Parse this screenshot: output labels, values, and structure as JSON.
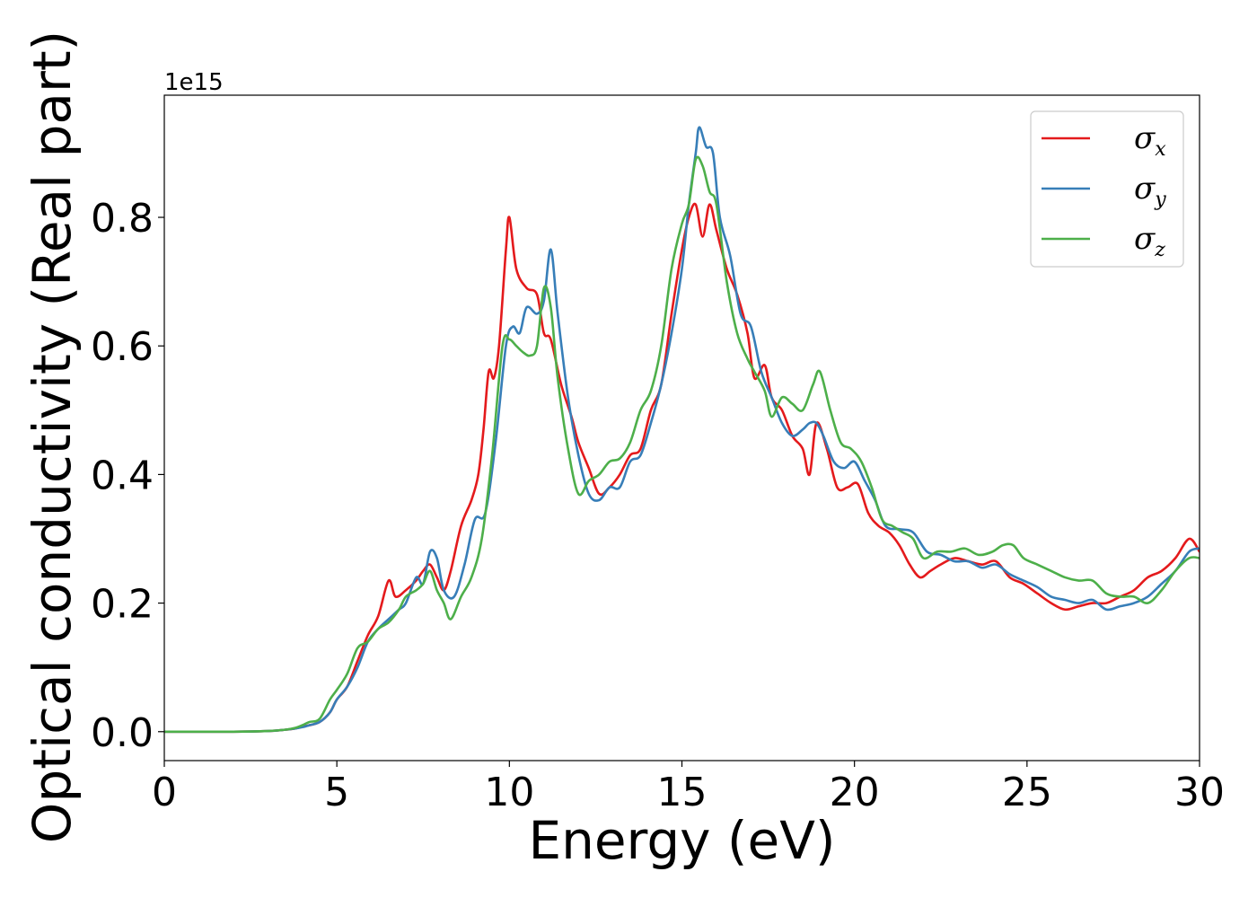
{
  "chart_data": {
    "type": "line",
    "xlabel": "Energy (eV)",
    "ylabel": "Optical conductivity (Real part)",
    "y_offset_label": "1e15",
    "xlim": [
      0,
      30
    ],
    "ylim": [
      -0.045,
      0.99
    ],
    "x_ticks": [
      0,
      5,
      10,
      15,
      20,
      25,
      30
    ],
    "x_tick_labels": [
      "0",
      "5",
      "10",
      "15",
      "20",
      "25",
      "30"
    ],
    "y_ticks": [
      0.0,
      0.2,
      0.4,
      0.6,
      0.8
    ],
    "y_tick_labels": [
      "0.0",
      "0.2",
      "0.4",
      "0.6",
      "0.8"
    ],
    "grid": false,
    "legend_position": "top-right",
    "series": [
      {
        "name": "σx",
        "legend_symbol": "σ",
        "legend_subscript": "x",
        "color": "#e41a1c",
        "x": [
          0,
          2,
          3,
          3.5,
          3.8,
          4.0,
          4.2,
          4.5,
          4.8,
          5.0,
          5.3,
          5.6,
          5.9,
          6.2,
          6.5,
          6.7,
          7.0,
          7.3,
          7.5,
          7.7,
          7.9,
          8.1,
          8.3,
          8.6,
          8.9,
          9.1,
          9.25,
          9.4,
          9.55,
          9.7,
          9.9,
          10.0,
          10.2,
          10.5,
          10.8,
          11.0,
          11.2,
          11.5,
          11.8,
          12.0,
          12.3,
          12.6,
          12.9,
          13.2,
          13.5,
          13.8,
          14.1,
          14.4,
          14.7,
          15.0,
          15.2,
          15.4,
          15.6,
          15.8,
          16.0,
          16.3,
          16.6,
          16.9,
          17.1,
          17.4,
          17.6,
          17.9,
          18.2,
          18.5,
          18.7,
          18.9,
          19.2,
          19.5,
          19.8,
          20.1,
          20.4,
          20.7,
          21.0,
          21.3,
          21.6,
          21.9,
          22.2,
          22.5,
          22.9,
          23.3,
          23.7,
          24.1,
          24.5,
          24.9,
          25.3,
          25.7,
          26.1,
          26.5,
          26.9,
          27.3,
          27.7,
          28.1,
          28.5,
          28.9,
          29.3,
          29.7,
          30.0
        ],
        "y": [
          0.0,
          0.0,
          0.001,
          0.003,
          0.005,
          0.008,
          0.01,
          0.015,
          0.03,
          0.05,
          0.07,
          0.11,
          0.15,
          0.18,
          0.235,
          0.21,
          0.22,
          0.235,
          0.25,
          0.26,
          0.24,
          0.22,
          0.25,
          0.32,
          0.36,
          0.4,
          0.47,
          0.56,
          0.55,
          0.6,
          0.75,
          0.8,
          0.72,
          0.69,
          0.68,
          0.62,
          0.61,
          0.54,
          0.49,
          0.45,
          0.41,
          0.37,
          0.38,
          0.4,
          0.43,
          0.44,
          0.5,
          0.54,
          0.65,
          0.75,
          0.8,
          0.82,
          0.77,
          0.82,
          0.78,
          0.72,
          0.68,
          0.62,
          0.55,
          0.57,
          0.52,
          0.5,
          0.46,
          0.44,
          0.4,
          0.48,
          0.44,
          0.38,
          0.38,
          0.385,
          0.34,
          0.32,
          0.31,
          0.29,
          0.26,
          0.24,
          0.25,
          0.26,
          0.27,
          0.265,
          0.26,
          0.265,
          0.24,
          0.23,
          0.215,
          0.2,
          0.19,
          0.195,
          0.2,
          0.2,
          0.21,
          0.22,
          0.24,
          0.25,
          0.27,
          0.3,
          0.28
        ]
      },
      {
        "name": "σy",
        "legend_symbol": "σ",
        "legend_subscript": "y",
        "color": "#377eb8",
        "x": [
          0,
          2,
          3,
          3.5,
          3.8,
          4.0,
          4.2,
          4.5,
          4.8,
          5.0,
          5.3,
          5.6,
          5.9,
          6.2,
          6.5,
          6.8,
          7.0,
          7.3,
          7.5,
          7.7,
          7.9,
          8.1,
          8.4,
          8.7,
          9.0,
          9.3,
          9.6,
          9.9,
          10.1,
          10.3,
          10.5,
          10.8,
          11.0,
          11.2,
          11.4,
          11.7,
          12.0,
          12.3,
          12.6,
          12.9,
          13.2,
          13.5,
          13.8,
          14.1,
          14.4,
          14.7,
          15.0,
          15.2,
          15.4,
          15.5,
          15.7,
          15.9,
          16.1,
          16.4,
          16.7,
          17.0,
          17.3,
          17.6,
          17.9,
          18.2,
          18.5,
          18.7,
          18.9,
          19.1,
          19.4,
          19.7,
          20.0,
          20.3,
          20.6,
          20.9,
          21.3,
          21.7,
          22.1,
          22.5,
          22.9,
          23.3,
          23.7,
          24.1,
          24.5,
          24.9,
          25.3,
          25.7,
          26.1,
          26.5,
          26.9,
          27.3,
          27.7,
          28.1,
          28.5,
          28.9,
          29.3,
          29.7,
          30.0
        ],
        "y": [
          0.0,
          0.0,
          0.001,
          0.003,
          0.005,
          0.007,
          0.01,
          0.015,
          0.03,
          0.05,
          0.07,
          0.1,
          0.14,
          0.16,
          0.175,
          0.19,
          0.2,
          0.24,
          0.23,
          0.28,
          0.27,
          0.22,
          0.21,
          0.26,
          0.33,
          0.34,
          0.45,
          0.6,
          0.63,
          0.62,
          0.66,
          0.65,
          0.67,
          0.75,
          0.65,
          0.52,
          0.43,
          0.37,
          0.36,
          0.38,
          0.38,
          0.42,
          0.43,
          0.48,
          0.54,
          0.62,
          0.72,
          0.82,
          0.9,
          0.94,
          0.91,
          0.9,
          0.8,
          0.74,
          0.65,
          0.63,
          0.56,
          0.52,
          0.48,
          0.46,
          0.47,
          0.48,
          0.48,
          0.46,
          0.42,
          0.41,
          0.42,
          0.39,
          0.36,
          0.32,
          0.315,
          0.31,
          0.28,
          0.275,
          0.265,
          0.265,
          0.255,
          0.26,
          0.245,
          0.235,
          0.225,
          0.21,
          0.205,
          0.2,
          0.205,
          0.19,
          0.195,
          0.2,
          0.21,
          0.23,
          0.25,
          0.28,
          0.285
        ]
      },
      {
        "name": "σz",
        "legend_symbol": "σ",
        "legend_subscript": "z",
        "color": "#4daf4a",
        "x": [
          0,
          2,
          3,
          3.5,
          3.8,
          4.0,
          4.2,
          4.5,
          4.8,
          5.0,
          5.3,
          5.6,
          5.9,
          6.2,
          6.5,
          6.8,
          7.0,
          7.3,
          7.5,
          7.7,
          7.9,
          8.1,
          8.3,
          8.6,
          8.9,
          9.2,
          9.5,
          9.8,
          10.0,
          10.2,
          10.4,
          10.6,
          10.8,
          11.0,
          11.2,
          11.4,
          11.7,
          12.0,
          12.3,
          12.6,
          12.9,
          13.2,
          13.5,
          13.8,
          14.1,
          14.4,
          14.7,
          15.0,
          15.2,
          15.4,
          15.6,
          15.8,
          16.0,
          16.3,
          16.6,
          16.9,
          17.1,
          17.4,
          17.6,
          17.9,
          18.2,
          18.5,
          18.8,
          19.0,
          19.3,
          19.6,
          19.9,
          20.2,
          20.5,
          20.8,
          21.1,
          21.4,
          21.7,
          22.0,
          22.4,
          22.8,
          23.2,
          23.6,
          24.0,
          24.3,
          24.6,
          24.9,
          25.3,
          25.7,
          26.1,
          26.5,
          26.9,
          27.3,
          27.7,
          28.1,
          28.5,
          28.9,
          29.3,
          29.7,
          30.0
        ],
        "y": [
          0.0,
          0.0,
          0.001,
          0.003,
          0.006,
          0.01,
          0.015,
          0.02,
          0.05,
          0.065,
          0.09,
          0.13,
          0.14,
          0.16,
          0.17,
          0.19,
          0.21,
          0.22,
          0.23,
          0.25,
          0.22,
          0.2,
          0.175,
          0.21,
          0.24,
          0.3,
          0.43,
          0.6,
          0.61,
          0.6,
          0.59,
          0.585,
          0.6,
          0.69,
          0.66,
          0.55,
          0.44,
          0.37,
          0.39,
          0.4,
          0.42,
          0.425,
          0.45,
          0.5,
          0.53,
          0.6,
          0.72,
          0.79,
          0.82,
          0.89,
          0.88,
          0.84,
          0.82,
          0.7,
          0.62,
          0.58,
          0.56,
          0.53,
          0.49,
          0.52,
          0.51,
          0.5,
          0.54,
          0.56,
          0.5,
          0.45,
          0.44,
          0.42,
          0.38,
          0.33,
          0.32,
          0.31,
          0.3,
          0.27,
          0.28,
          0.28,
          0.285,
          0.275,
          0.28,
          0.29,
          0.29,
          0.27,
          0.26,
          0.25,
          0.24,
          0.235,
          0.235,
          0.215,
          0.21,
          0.21,
          0.2,
          0.22,
          0.25,
          0.27,
          0.27
        ]
      }
    ]
  }
}
